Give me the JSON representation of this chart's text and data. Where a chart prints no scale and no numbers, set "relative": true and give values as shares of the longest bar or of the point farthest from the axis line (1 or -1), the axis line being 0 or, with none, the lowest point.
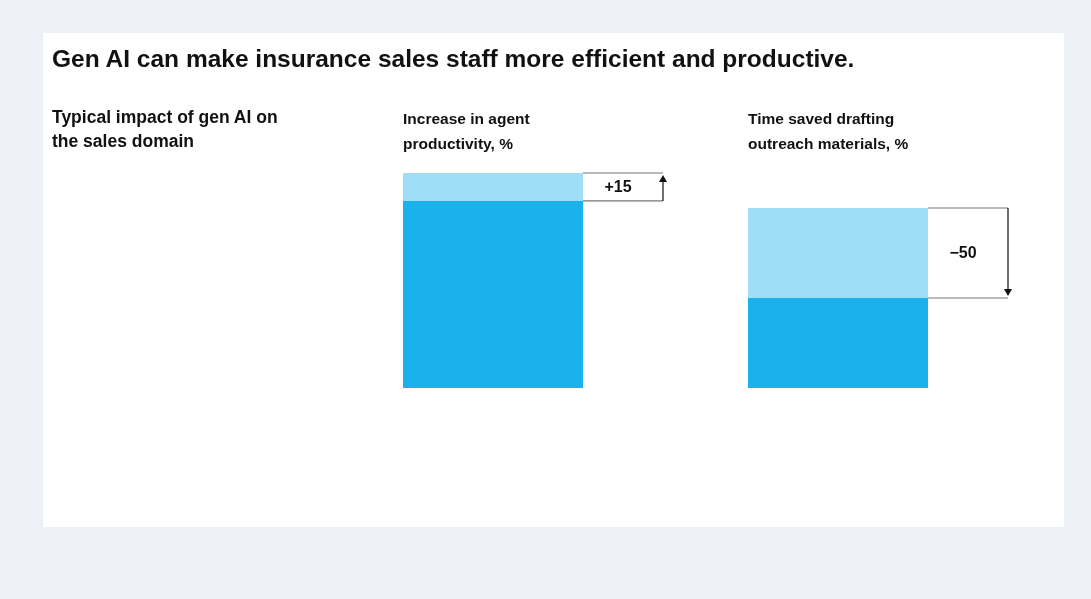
{
  "chart_data": [
    {
      "type": "bar",
      "title": "Increase in agent productivity, %",
      "annotations": [
        "Gen AI can make insurance sales staff more efficient and productive.",
        "Typical impact of gen AI on the sales domain",
        "+15"
      ],
      "categories": [
        null
      ],
      "stacked": true,
      "relative": true,
      "series": [
        {
          "color": "#1bb1ec",
          "values": [
            0.87
          ]
        },
        {
          "color": "#9edff7",
          "values": [
            0.13
          ]
        }
      ]
    },
    {
      "type": "bar",
      "title": "Time saved drafting outreach materials, %",
      "annotations": [
        "−50"
      ],
      "categories": [
        null
      ],
      "stacked": true,
      "relative": true,
      "series": [
        {
          "color": "#1bb1ec",
          "values": [
            0.5
          ]
        },
        {
          "color": "#9edff7",
          "values": [
            0.5
          ]
        }
      ]
    }
  ]
}
